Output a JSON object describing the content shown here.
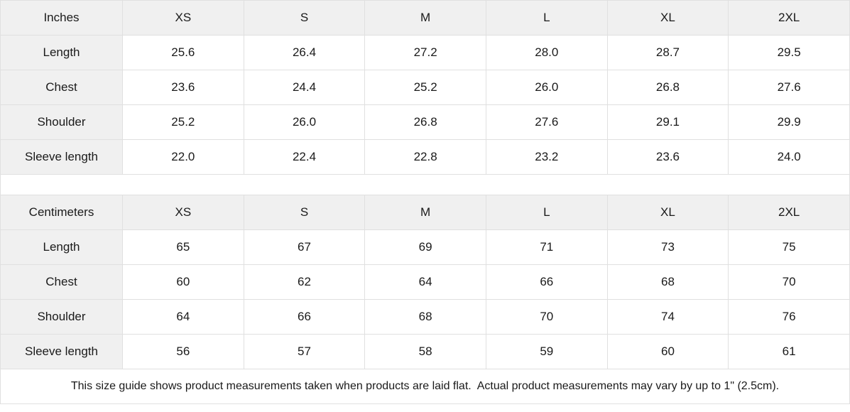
{
  "colors": {
    "cell_background": "#f0f0f0",
    "border": "#e0e0e0",
    "text": "#1a1a1a",
    "page_background": "#ffffff"
  },
  "inches": {
    "unit_label": "Inches",
    "sizes": [
      "XS",
      "S",
      "M",
      "L",
      "XL",
      "2XL"
    ],
    "rows": [
      {
        "label": "Length",
        "values": [
          "25.6",
          "26.4",
          "27.2",
          "28.0",
          "28.7",
          "29.5"
        ]
      },
      {
        "label": "Chest",
        "values": [
          "23.6",
          "24.4",
          "25.2",
          "26.0",
          "26.8",
          "27.6"
        ]
      },
      {
        "label": "Shoulder",
        "values": [
          "25.2",
          "26.0",
          "26.8",
          "27.6",
          "29.1",
          "29.9"
        ]
      },
      {
        "label": "Sleeve length",
        "values": [
          "22.0",
          "22.4",
          "22.8",
          "23.2",
          "23.6",
          "24.0"
        ]
      }
    ]
  },
  "centimeters": {
    "unit_label": "Centimeters",
    "sizes": [
      "XS",
      "S",
      "M",
      "L",
      "XL",
      "2XL"
    ],
    "rows": [
      {
        "label": "Length",
        "values": [
          "65",
          "67",
          "69",
          "71",
          "73",
          "75"
        ]
      },
      {
        "label": "Chest",
        "values": [
          "60",
          "62",
          "64",
          "66",
          "68",
          "70"
        ]
      },
      {
        "label": "Shoulder",
        "values": [
          "64",
          "66",
          "68",
          "70",
          "74",
          "76"
        ]
      },
      {
        "label": "Sleeve length",
        "values": [
          "56",
          "57",
          "58",
          "59",
          "60",
          "61"
        ]
      }
    ]
  },
  "footer": {
    "note": "This size guide shows product measurements taken when products are laid flat.  Actual product measurements may vary by up to 1\" (2.5cm)."
  }
}
